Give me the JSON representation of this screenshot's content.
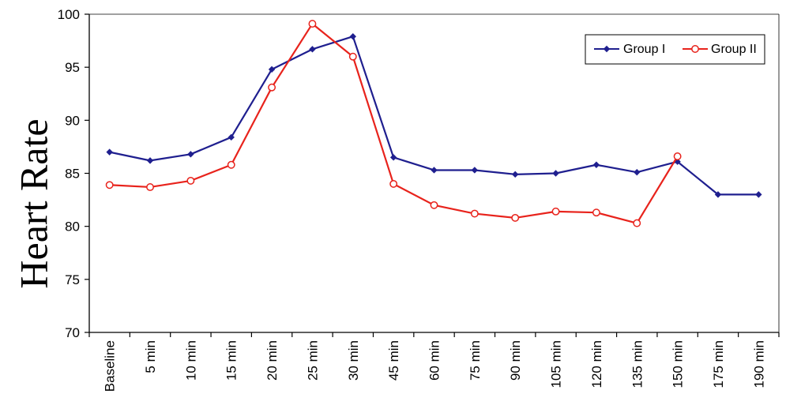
{
  "chart_data": {
    "type": "line",
    "ylabel": "Heart Rate",
    "xlabel": "",
    "ylim": [
      70,
      100
    ],
    "yticks": [
      70,
      75,
      80,
      85,
      90,
      95,
      100
    ],
    "grid": false,
    "legend_position": "top-right",
    "categories": [
      "Baseline",
      "5 min",
      "10 min",
      "15 min",
      "20 min",
      "25 min",
      "30 min",
      "45 min",
      "60 min",
      "75 min",
      "90 min",
      "105 min",
      "120 min",
      "135 min",
      "150 min",
      "175 min",
      "190 min"
    ],
    "series": [
      {
        "name": "Group I",
        "color": "#1f1f8f",
        "marker": "diamond",
        "values": [
          87.0,
          86.2,
          86.8,
          88.4,
          94.8,
          96.7,
          97.9,
          86.5,
          85.3,
          85.3,
          84.9,
          85.0,
          85.8,
          85.1,
          86.1,
          83.0,
          83.0
        ]
      },
      {
        "name": "Group II",
        "color": "#e8231c",
        "marker": "circle-open",
        "values": [
          83.9,
          83.7,
          84.3,
          85.8,
          93.1,
          99.1,
          96.0,
          84.0,
          82.0,
          81.2,
          80.8,
          81.4,
          81.3,
          80.3,
          86.6,
          null,
          null
        ]
      }
    ]
  }
}
